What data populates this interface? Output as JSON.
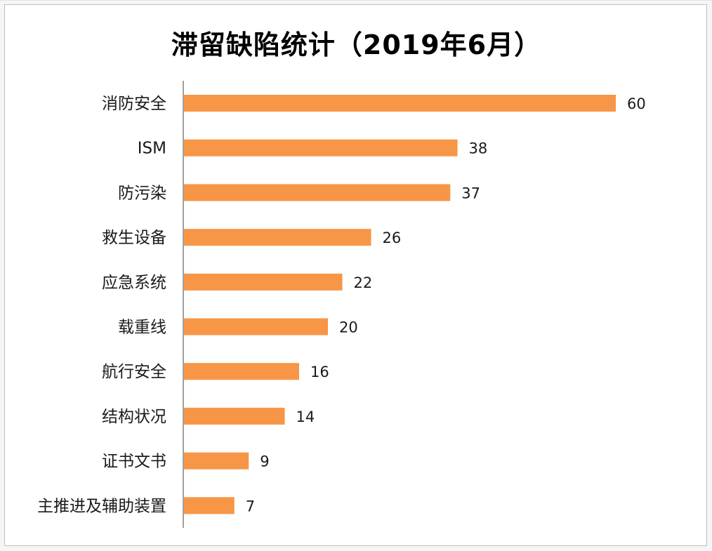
{
  "chart_data": {
    "type": "bar",
    "orientation": "horizontal",
    "title": "滞留缺陷统计（2019年6月）",
    "categories": [
      "消防安全",
      "ISM",
      "防污染",
      "救生设备",
      "应急系统",
      "载重线",
      "航行安全",
      "结构状况",
      "证书文书",
      "主推进及辅助装置"
    ],
    "values": [
      60,
      38,
      37,
      26,
      22,
      20,
      16,
      14,
      9,
      7
    ],
    "xlim": [
      0,
      60
    ],
    "grid": false,
    "legend": "none",
    "bar_color": "#F79646",
    "axis_color": "#808080"
  }
}
